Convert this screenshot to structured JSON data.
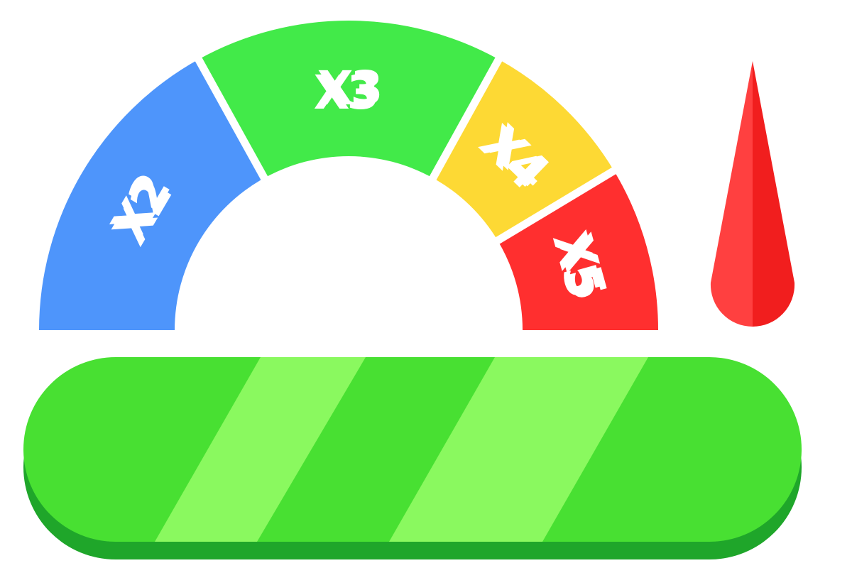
{
  "multiplier_meter": {
    "segments": [
      {
        "label": "X2",
        "color": "#4E95FB",
        "shadow": "#2F6FD8"
      },
      {
        "label": "X3",
        "color": "#42EA49",
        "shadow": "#2AB833"
      },
      {
        "label": "X4",
        "color": "#FDD934",
        "shadow": "#D9A51C"
      },
      {
        "label": "X5",
        "color": "#FF2F2F",
        "shadow": "#C91F1F"
      }
    ],
    "gap_color": "#ffffff"
  },
  "needle": {
    "color_light": "#FF4040",
    "color_dark": "#F11E1E"
  },
  "power_bar": {
    "fill_color": "#48E032",
    "stripe_color": "#8AF95F",
    "base_color": "#1FA62A"
  }
}
